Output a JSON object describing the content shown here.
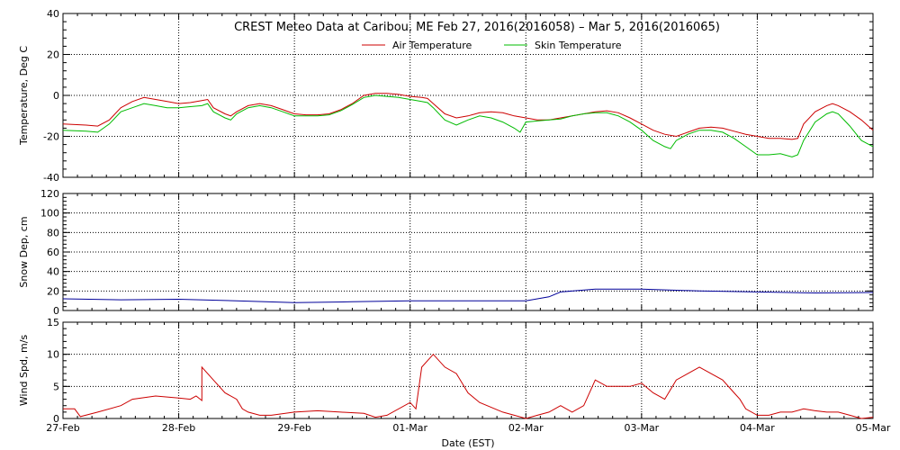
{
  "title": "CREST Meteo Data at Caribou, ME   Feb 27, 2016(2016058) – Mar  5, 2016(2016065)",
  "xlabel": "Date (EST)",
  "x_ticks": [
    "27-Feb",
    "28-Feb",
    "29-Feb",
    "01-Mar",
    "02-Mar",
    "03-Mar",
    "04-Mar",
    "05-Mar"
  ],
  "colors": {
    "air": "#cc0000",
    "skin": "#00bb00",
    "snow": "#000099",
    "wind": "#cc0000",
    "grid": "#000000"
  },
  "chart_data": [
    {
      "type": "line",
      "ylabel": "Temperature, Deg C",
      "ylim": [
        -40,
        40
      ],
      "y_ticks": [
        -40,
        -20,
        0,
        20,
        40
      ],
      "x_unit": "days since 27-Feb 00:00",
      "legend_position": "top-center",
      "series": [
        {
          "name": "Air Temperature",
          "color_key": "air",
          "points": [
            [
              0,
              -14
            ],
            [
              0.2,
              -14.5
            ],
            [
              0.3,
              -15
            ],
            [
              0.4,
              -12
            ],
            [
              0.5,
              -6
            ],
            [
              0.6,
              -3
            ],
            [
              0.7,
              -1
            ],
            [
              0.8,
              -2
            ],
            [
              0.9,
              -3
            ],
            [
              1.0,
              -4
            ],
            [
              1.1,
              -3.5
            ],
            [
              1.2,
              -2.5
            ],
            [
              1.25,
              -2
            ],
            [
              1.3,
              -6
            ],
            [
              1.4,
              -9
            ],
            [
              1.45,
              -10
            ],
            [
              1.5,
              -8
            ],
            [
              1.6,
              -5
            ],
            [
              1.7,
              -4
            ],
            [
              1.8,
              -5
            ],
            [
              1.9,
              -7
            ],
            [
              2.0,
              -9
            ],
            [
              2.1,
              -9.5
            ],
            [
              2.2,
              -9.5
            ],
            [
              2.3,
              -9
            ],
            [
              2.4,
              -7
            ],
            [
              2.5,
              -4
            ],
            [
              2.6,
              0
            ],
            [
              2.7,
              1
            ],
            [
              2.8,
              1
            ],
            [
              2.9,
              0.5
            ],
            [
              3.0,
              -0.5
            ],
            [
              3.1,
              -1
            ],
            [
              3.15,
              -1.5
            ],
            [
              3.2,
              -4
            ],
            [
              3.3,
              -9
            ],
            [
              3.4,
              -11
            ],
            [
              3.5,
              -10
            ],
            [
              3.6,
              -8.5
            ],
            [
              3.7,
              -8
            ],
            [
              3.8,
              -8.5
            ],
            [
              3.9,
              -10
            ],
            [
              4.0,
              -11
            ],
            [
              4.1,
              -12
            ],
            [
              4.2,
              -12
            ],
            [
              4.3,
              -11
            ],
            [
              4.4,
              -10
            ],
            [
              4.5,
              -9
            ],
            [
              4.6,
              -8
            ],
            [
              4.7,
              -7.5
            ],
            [
              4.8,
              -8.5
            ],
            [
              4.9,
              -11
            ],
            [
              5.0,
              -14
            ],
            [
              5.1,
              -17
            ],
            [
              5.2,
              -19
            ],
            [
              5.3,
              -20
            ],
            [
              5.4,
              -18
            ],
            [
              5.5,
              -16
            ],
            [
              5.6,
              -15.5
            ],
            [
              5.7,
              -16
            ],
            [
              5.8,
              -17.5
            ],
            [
              5.9,
              -19
            ],
            [
              6.0,
              -20
            ],
            [
              6.1,
              -21
            ],
            [
              6.2,
              -21
            ],
            [
              6.3,
              -21.5
            ],
            [
              6.35,
              -21
            ],
            [
              6.4,
              -14
            ],
            [
              6.5,
              -8
            ],
            [
              6.6,
              -5
            ],
            [
              6.65,
              -4
            ],
            [
              6.7,
              -5
            ],
            [
              6.8,
              -8
            ],
            [
              6.9,
              -12
            ],
            [
              7.0,
              -17
            ]
          ]
        },
        {
          "name": "Skin Temperature",
          "color_key": "skin",
          "points": [
            [
              0,
              -17
            ],
            [
              0.2,
              -17.5
            ],
            [
              0.3,
              -18
            ],
            [
              0.4,
              -14
            ],
            [
              0.5,
              -8
            ],
            [
              0.6,
              -6
            ],
            [
              0.7,
              -4
            ],
            [
              0.8,
              -5
            ],
            [
              0.9,
              -6
            ],
            [
              1.0,
              -6
            ],
            [
              1.1,
              -5.5
            ],
            [
              1.2,
              -5
            ],
            [
              1.25,
              -4
            ],
            [
              1.3,
              -8
            ],
            [
              1.4,
              -11
            ],
            [
              1.45,
              -12
            ],
            [
              1.5,
              -9
            ],
            [
              1.6,
              -6
            ],
            [
              1.7,
              -5
            ],
            [
              1.8,
              -6
            ],
            [
              1.9,
              -8
            ],
            [
              2.0,
              -10
            ],
            [
              2.1,
              -10
            ],
            [
              2.2,
              -10
            ],
            [
              2.3,
              -9.5
            ],
            [
              2.4,
              -7.5
            ],
            [
              2.5,
              -4.5
            ],
            [
              2.6,
              -1
            ],
            [
              2.7,
              0
            ],
            [
              2.8,
              -0.5
            ],
            [
              2.9,
              -1
            ],
            [
              3.0,
              -2
            ],
            [
              3.1,
              -3
            ],
            [
              3.15,
              -3.5
            ],
            [
              3.2,
              -6
            ],
            [
              3.3,
              -12
            ],
            [
              3.4,
              -14.5
            ],
            [
              3.5,
              -12
            ],
            [
              3.6,
              -10
            ],
            [
              3.7,
              -11
            ],
            [
              3.8,
              -13
            ],
            [
              3.9,
              -16
            ],
            [
              3.95,
              -18
            ],
            [
              4.0,
              -13
            ],
            [
              4.1,
              -12.5
            ],
            [
              4.2,
              -12
            ],
            [
              4.3,
              -11.5
            ],
            [
              4.4,
              -10
            ],
            [
              4.5,
              -9
            ],
            [
              4.6,
              -8.5
            ],
            [
              4.7,
              -8.5
            ],
            [
              4.8,
              -10
            ],
            [
              4.9,
              -13
            ],
            [
              5.0,
              -17
            ],
            [
              5.1,
              -22
            ],
            [
              5.2,
              -25
            ],
            [
              5.25,
              -26
            ],
            [
              5.3,
              -22
            ],
            [
              5.4,
              -19
            ],
            [
              5.5,
              -17
            ],
            [
              5.6,
              -17
            ],
            [
              5.7,
              -18
            ],
            [
              5.8,
              -21
            ],
            [
              5.9,
              -25
            ],
            [
              6.0,
              -29
            ],
            [
              6.1,
              -29
            ],
            [
              6.2,
              -28.5
            ],
            [
              6.3,
              -30
            ],
            [
              6.35,
              -29
            ],
            [
              6.4,
              -22
            ],
            [
              6.5,
              -13
            ],
            [
              6.6,
              -9
            ],
            [
              6.65,
              -8
            ],
            [
              6.7,
              -9
            ],
            [
              6.8,
              -15
            ],
            [
              6.9,
              -22
            ],
            [
              7.0,
              -25
            ]
          ]
        }
      ]
    },
    {
      "type": "line",
      "ylabel": "Snow Dep, cm",
      "ylim": [
        0,
        120
      ],
      "y_ticks": [
        0,
        20,
        40,
        60,
        80,
        100,
        120
      ],
      "x_unit": "days since 27-Feb 00:00",
      "series": [
        {
          "name": "",
          "color_key": "snow",
          "points": [
            [
              0,
              12
            ],
            [
              0.5,
              11
            ],
            [
              1.0,
              11.5
            ],
            [
              1.5,
              10
            ],
            [
              2.0,
              8
            ],
            [
              2.5,
              9
            ],
            [
              3.0,
              10
            ],
            [
              3.5,
              10
            ],
            [
              4.0,
              10
            ],
            [
              4.2,
              14
            ],
            [
              4.3,
              19
            ],
            [
              4.6,
              22
            ],
            [
              5.0,
              22
            ],
            [
              5.5,
              20
            ],
            [
              6.0,
              19
            ],
            [
              6.5,
              18
            ],
            [
              7.0,
              18.5
            ]
          ]
        }
      ]
    },
    {
      "type": "line",
      "ylabel": "Wind Spd, m/s",
      "ylim": [
        0,
        15
      ],
      "y_ticks": [
        0,
        5,
        10,
        15
      ],
      "x_unit": "days since 27-Feb 00:00",
      "series": [
        {
          "name": "",
          "color_key": "wind",
          "points": [
            [
              0,
              1.5
            ],
            [
              0.1,
              1.5
            ],
            [
              0.15,
              0.3
            ],
            [
              0.3,
              1
            ],
            [
              0.5,
              2
            ],
            [
              0.6,
              3
            ],
            [
              0.8,
              3.5
            ],
            [
              1.0,
              3.2
            ],
            [
              1.1,
              3
            ],
            [
              1.15,
              3.5
            ],
            [
              1.2,
              2.8
            ],
            [
              1.2,
              8
            ],
            [
              1.3,
              6
            ],
            [
              1.4,
              4
            ],
            [
              1.5,
              3
            ],
            [
              1.55,
              1.5
            ],
            [
              1.6,
              1
            ],
            [
              1.7,
              0.5
            ],
            [
              1.8,
              0.5
            ],
            [
              2.0,
              1
            ],
            [
              2.2,
              1.2
            ],
            [
              2.4,
              1
            ],
            [
              2.6,
              0.8
            ],
            [
              2.7,
              0.2
            ],
            [
              2.8,
              0.5
            ],
            [
              3.0,
              2.5
            ],
            [
              3.05,
              1.5
            ],
            [
              3.1,
              8
            ],
            [
              3.2,
              10
            ],
            [
              3.3,
              8
            ],
            [
              3.4,
              7
            ],
            [
              3.5,
              4
            ],
            [
              3.6,
              2.5
            ],
            [
              3.8,
              1
            ],
            [
              3.9,
              0.5
            ],
            [
              4.0,
              0
            ],
            [
              4.1,
              0.5
            ],
            [
              4.2,
              1
            ],
            [
              4.3,
              2
            ],
            [
              4.4,
              1
            ],
            [
              4.5,
              2
            ],
            [
              4.6,
              6
            ],
            [
              4.7,
              5
            ],
            [
              4.8,
              5
            ],
            [
              4.9,
              5
            ],
            [
              5.0,
              5.5
            ],
            [
              5.1,
              4
            ],
            [
              5.2,
              3
            ],
            [
              5.3,
              6
            ],
            [
              5.4,
              7
            ],
            [
              5.5,
              8
            ],
            [
              5.6,
              7
            ],
            [
              5.7,
              6
            ],
            [
              5.8,
              4
            ],
            [
              5.85,
              3
            ],
            [
              5.9,
              1.5
            ],
            [
              6.0,
              0.5
            ],
            [
              6.1,
              0.5
            ],
            [
              6.2,
              1
            ],
            [
              6.3,
              1
            ],
            [
              6.4,
              1.5
            ],
            [
              6.5,
              1.2
            ],
            [
              6.6,
              1
            ],
            [
              6.7,
              1
            ],
            [
              6.8,
              0.5
            ],
            [
              6.9,
              0
            ],
            [
              7.0,
              0.2
            ]
          ]
        }
      ]
    }
  ]
}
